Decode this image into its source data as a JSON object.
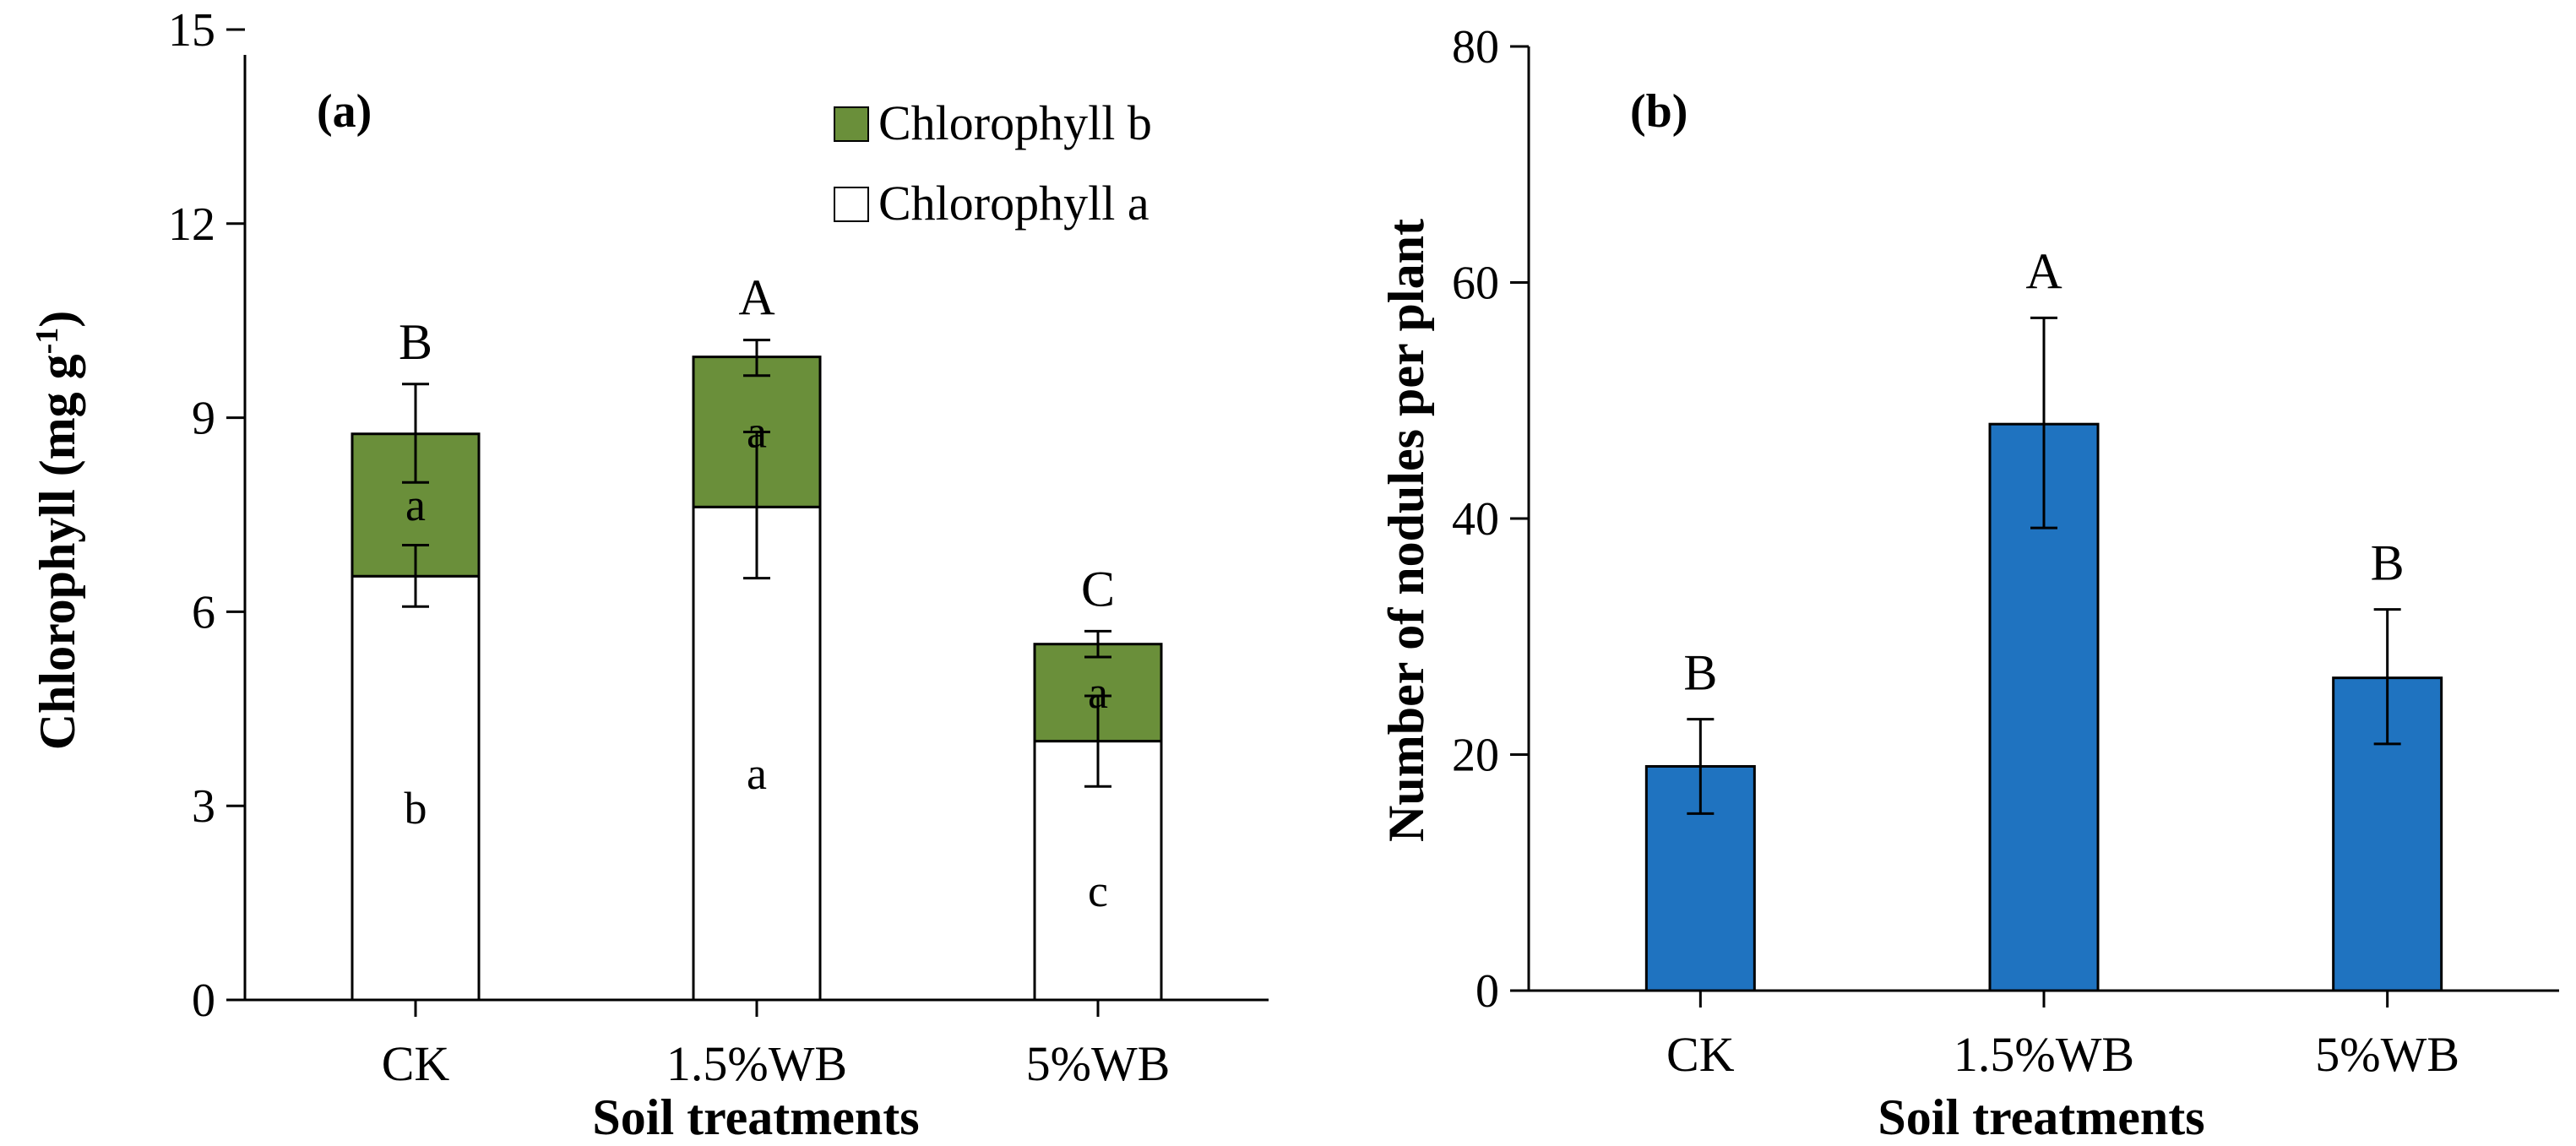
{
  "colors": {
    "chlorophyll_b": "#6a8f3a",
    "chlorophyll_a": "#ffffff",
    "nodules": "#1f73c0",
    "stroke": "#000000"
  },
  "chart_data": [
    {
      "type": "bar",
      "stacked": true,
      "panel_label": "(a)",
      "title": "",
      "categories": [
        "CK",
        "1.5%WB",
        "5%WB"
      ],
      "xlabel": "Soil treatments",
      "ylabel": "Chlorophyll (mg g-1)",
      "ylabel_main": "Chlorophyll (mg g",
      "ylabel_sup": "-1",
      "ylabel_end": ")",
      "ylim": [
        0,
        15
      ],
      "yticks": [
        0,
        3,
        6,
        9,
        12,
        15
      ],
      "legend_position": "top-right",
      "series": [
        {
          "name": "Chlorophyll a",
          "color_key": "chlorophyll_a",
          "values": [
            6.55,
            7.62,
            4.0
          ],
          "error_low": [
            6.08,
            6.52,
            3.3
          ],
          "error_high": [
            7.03,
            8.78,
            4.7
          ],
          "letters": [
            "b",
            "a",
            "c"
          ]
        },
        {
          "name": "Chlorophyll b",
          "color_key": "chlorophyll_b",
          "values": [
            2.2,
            2.32,
            1.5
          ],
          "error_low": [
            8.0,
            9.65,
            5.3
          ],
          "error_high": [
            9.52,
            10.2,
            5.7
          ],
          "letters": [
            "a",
            "a",
            "a"
          ]
        }
      ],
      "total_letters": [
        "B",
        "A",
        "C"
      ]
    },
    {
      "type": "bar",
      "panel_label": "(b)",
      "title": "",
      "categories": [
        "CK",
        "1.5%WB",
        "5%WB"
      ],
      "xlabel": "Soil treatments",
      "ylabel": "Number of nodules per plant",
      "ylim": [
        0,
        80
      ],
      "yticks": [
        0,
        20,
        40,
        60,
        80
      ],
      "series": [
        {
          "name": "Nodules per plant",
          "color_key": "nodules",
          "values": [
            19,
            48,
            26.5
          ],
          "error_low": [
            15,
            39.2,
            20.9
          ],
          "error_high": [
            23,
            57,
            32.3
          ],
          "letters": [
            "B",
            "A",
            "B"
          ]
        }
      ]
    }
  ]
}
